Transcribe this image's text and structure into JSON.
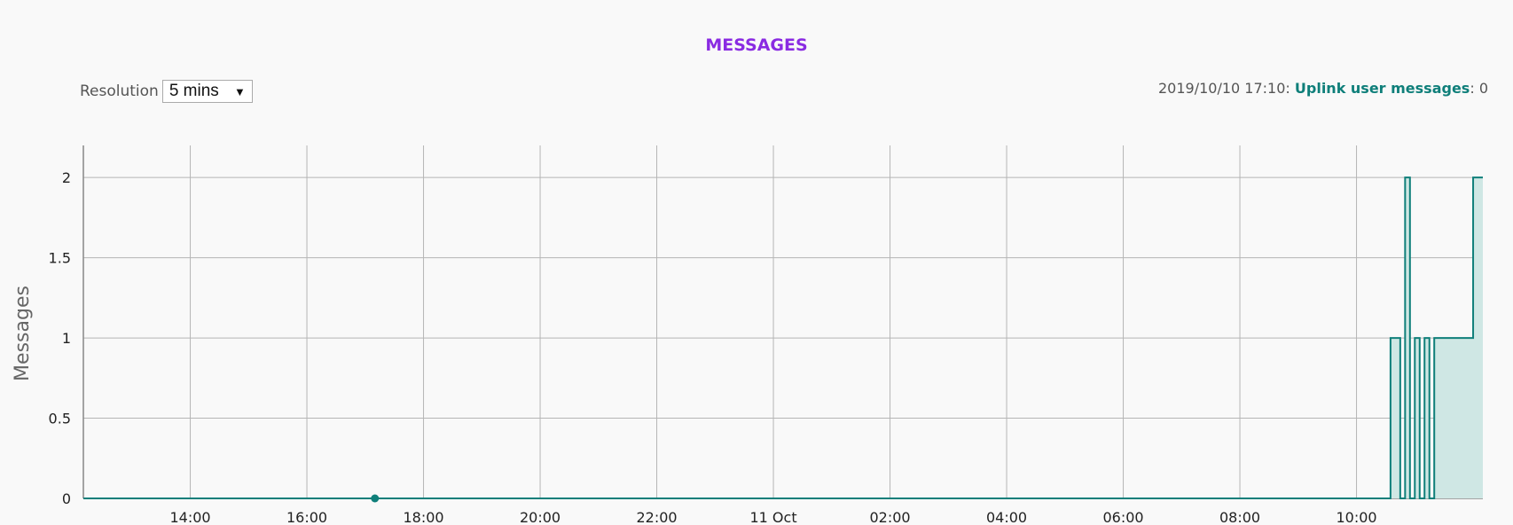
{
  "header": {
    "title": "MESSAGES",
    "resolution_label": "Resolution",
    "resolution_value": "5 mins"
  },
  "status": {
    "timestamp": "2019/10/10 17:10:",
    "series_label": "Uplink user messages",
    "separator": ":",
    "value": "0"
  },
  "colors": {
    "title": "#8a2be2",
    "series_line": "#0f7f7a",
    "series_fill": "#cfe7e4",
    "grid": "#b5b5b5"
  },
  "chart_data": {
    "type": "area",
    "ylabel": "Messages",
    "xlabel": "",
    "ylim": [
      0,
      2.2
    ],
    "xlim": [
      "2019-10-10 12:10",
      "2019-10-11 12:10"
    ],
    "y_ticks": [
      "0",
      "0.5",
      "1",
      "1.5",
      "2"
    ],
    "y_tick_values": [
      0,
      0.5,
      1,
      1.5,
      2
    ],
    "x_ticks": [
      "14:00",
      "16:00",
      "18:00",
      "20:00",
      "22:00",
      "11 Oct",
      "02:00",
      "04:00",
      "06:00",
      "08:00",
      "10:00"
    ],
    "x_tick_times": [
      "2019-10-10 14:00",
      "2019-10-10 16:00",
      "2019-10-10 18:00",
      "2019-10-10 20:00",
      "2019-10-10 22:00",
      "2019-10-11 00:00",
      "2019-10-11 02:00",
      "2019-10-11 04:00",
      "2019-10-11 06:00",
      "2019-10-11 08:00",
      "2019-10-11 10:00"
    ],
    "grid": true,
    "step": true,
    "marker": {
      "x": "2019-10-10 17:10",
      "y": 0
    },
    "series": [
      {
        "name": "Uplink user messages",
        "points": [
          {
            "x": "2019-10-11 10:35",
            "y": 1
          },
          {
            "x": "2019-10-11 10:40",
            "y": 1
          },
          {
            "x": "2019-10-11 10:45",
            "y": 0
          },
          {
            "x": "2019-10-11 10:50",
            "y": 2
          },
          {
            "x": "2019-10-11 10:55",
            "y": 0
          },
          {
            "x": "2019-10-11 11:00",
            "y": 1
          },
          {
            "x": "2019-10-11 11:05",
            "y": 0
          },
          {
            "x": "2019-10-11 11:10",
            "y": 1
          },
          {
            "x": "2019-10-11 11:15",
            "y": 0
          },
          {
            "x": "2019-10-11 11:20",
            "y": 1
          },
          {
            "x": "2019-10-11 11:55",
            "y": 1
          },
          {
            "x": "2019-10-11 12:00",
            "y": 2
          }
        ]
      }
    ]
  }
}
